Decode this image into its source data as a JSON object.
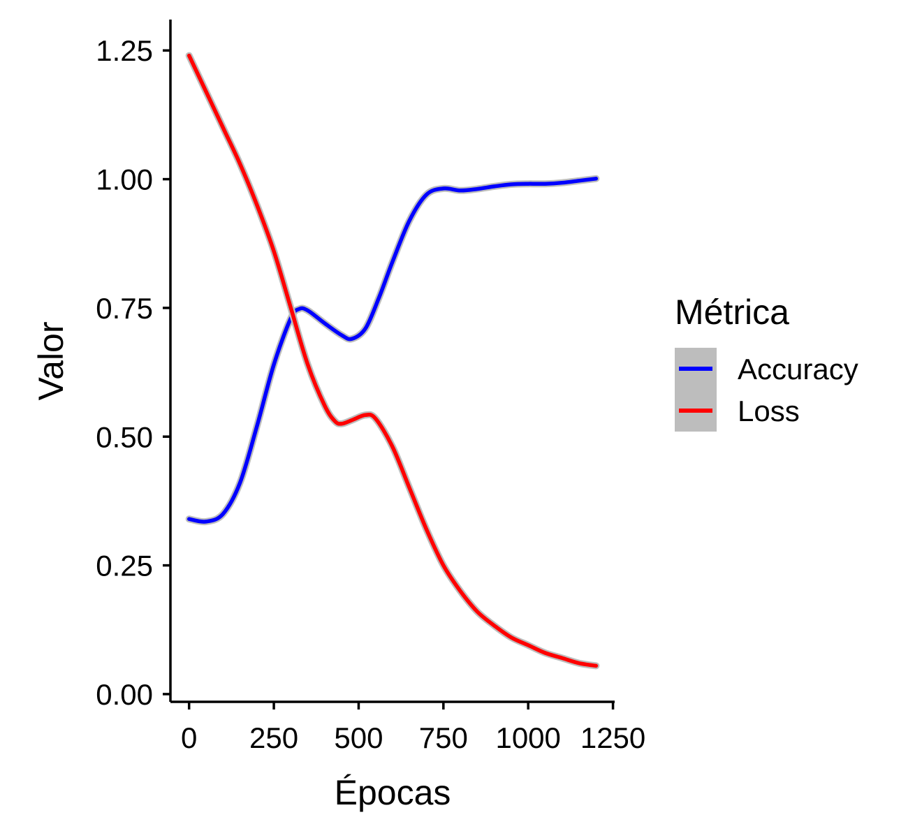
{
  "chart_data": {
    "type": "line",
    "title": "",
    "xlabel": "Épocas",
    "ylabel": "Valor",
    "xlim": [
      -55,
      1255
    ],
    "ylim": [
      -0.015,
      1.31
    ],
    "xticks": [
      "0",
      "250",
      "500",
      "750",
      "1000",
      "1250"
    ],
    "xtick_values": [
      0,
      250,
      500,
      750,
      1000,
      1250
    ],
    "yticks": [
      "0.00",
      "0.25",
      "0.50",
      "0.75",
      "1.00",
      "1.25"
    ],
    "ytick_values": [
      0,
      0.25,
      0.5,
      0.75,
      1.0,
      1.25
    ],
    "grid": false,
    "legend": {
      "title": "Métrica",
      "position": "right"
    },
    "series": [
      {
        "name": "Accuracy",
        "color": "#0000FF",
        "x": [
          0,
          50,
          100,
          150,
          200,
          250,
          300,
          325,
          350,
          400,
          450,
          480,
          520,
          560,
          600,
          650,
          700,
          750,
          800,
          850,
          900,
          950,
          1000,
          1050,
          1100,
          1150,
          1200
        ],
        "values": [
          0.34,
          0.335,
          0.35,
          0.41,
          0.52,
          0.64,
          0.73,
          0.748,
          0.745,
          0.72,
          0.697,
          0.69,
          0.71,
          0.77,
          0.84,
          0.92,
          0.97,
          0.982,
          0.978,
          0.981,
          0.986,
          0.99,
          0.991,
          0.991,
          0.993,
          0.997,
          1.001
        ]
      },
      {
        "name": "Loss",
        "color": "#FF0000",
        "x": [
          0,
          50,
          100,
          150,
          200,
          250,
          300,
          350,
          400,
          430,
          450,
          480,
          520,
          550,
          600,
          650,
          700,
          750,
          800,
          850,
          900,
          950,
          1000,
          1050,
          1100,
          1150,
          1200
        ],
        "values": [
          1.24,
          1.17,
          1.1,
          1.03,
          0.95,
          0.86,
          0.75,
          0.64,
          0.56,
          0.53,
          0.525,
          0.532,
          0.542,
          0.535,
          0.48,
          0.4,
          0.32,
          0.25,
          0.2,
          0.16,
          0.133,
          0.11,
          0.095,
          0.08,
          0.07,
          0.06,
          0.055
        ]
      }
    ]
  }
}
